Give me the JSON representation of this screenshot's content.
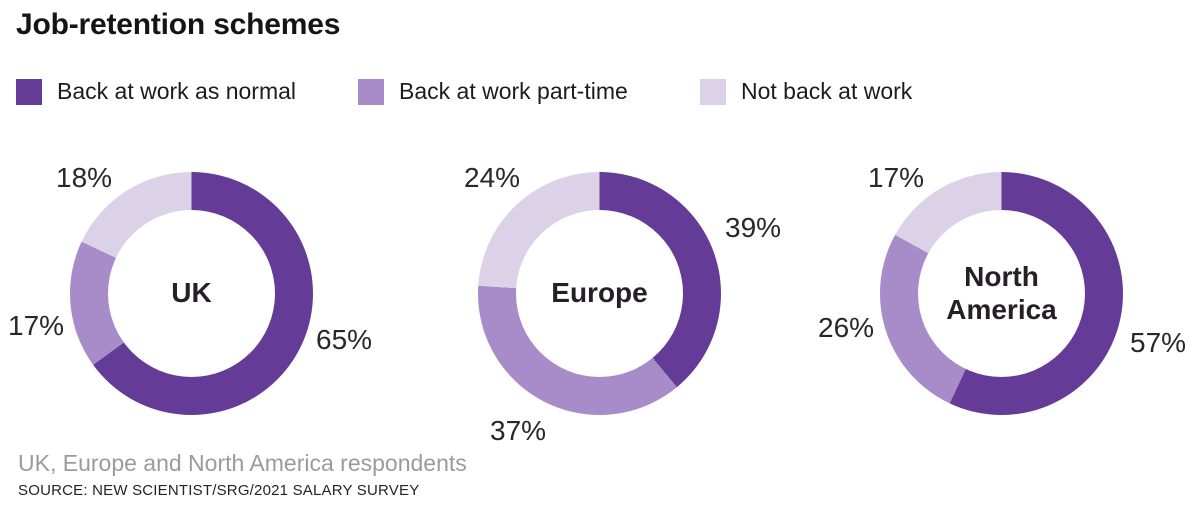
{
  "header": {
    "title": "Job-retention schemes"
  },
  "legend": {
    "items": [
      {
        "label": "Back at work as normal",
        "color": "#643c97"
      },
      {
        "label": "Back at work part-time",
        "color": "#a88cc9"
      },
      {
        "label": "Not back at work",
        "color": "#dcd2e8"
      }
    ]
  },
  "footer": {
    "note": "UK, Europe and North America respondents",
    "source": "SOURCE: NEW SCIENTIST/SRG/2021 SALARY SURVEY"
  },
  "chart_data": [
    {
      "type": "pie",
      "variant": "donut",
      "center_label": "UK",
      "start_angle": "top",
      "direction": "clockwise",
      "series": [
        {
          "name": "Back at work as normal",
          "value": 65,
          "display": "65%"
        },
        {
          "name": "Back at work part-time",
          "value": 17,
          "display": "17%"
        },
        {
          "name": "Not back at work",
          "value": 18,
          "display": "18%"
        }
      ]
    },
    {
      "type": "pie",
      "variant": "donut",
      "center_label": "Europe",
      "start_angle": "top",
      "direction": "clockwise",
      "series": [
        {
          "name": "Back at work as normal",
          "value": 39,
          "display": "39%"
        },
        {
          "name": "Back at work part-time",
          "value": 37,
          "display": "37%"
        },
        {
          "name": "Not back at work",
          "value": 24,
          "display": "24%"
        }
      ]
    },
    {
      "type": "pie",
      "variant": "donut",
      "center_label": "North America",
      "start_angle": "top",
      "direction": "clockwise",
      "series": [
        {
          "name": "Back at work as normal",
          "value": 57,
          "display": "57%"
        },
        {
          "name": "Back at work part-time",
          "value": 26,
          "display": "26%"
        },
        {
          "name": "Not back at work",
          "value": 17,
          "display": "17%"
        }
      ]
    }
  ]
}
